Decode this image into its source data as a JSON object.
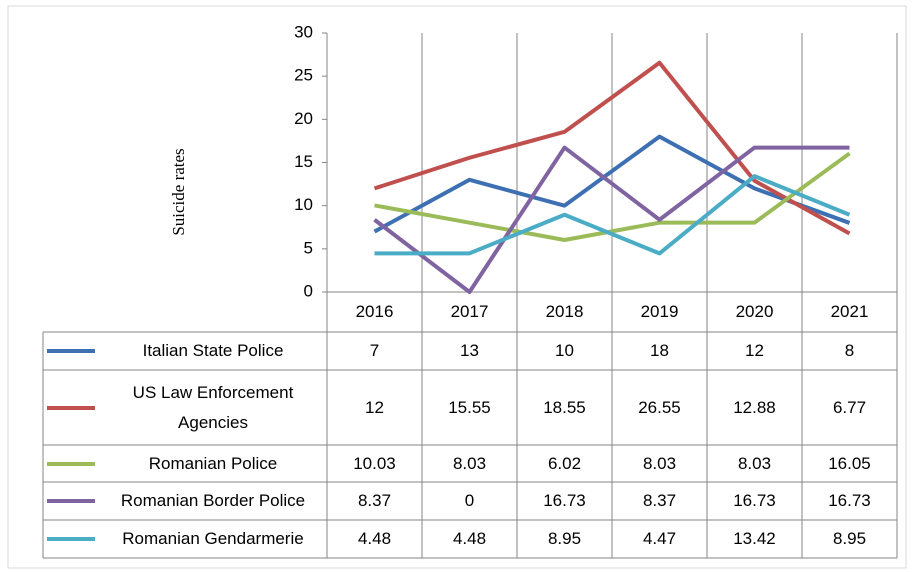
{
  "chart_data": {
    "type": "line",
    "y_label": "Suicide rates",
    "categories": [
      "2016",
      "2017",
      "2018",
      "2019",
      "2020",
      "2021"
    ],
    "ylim": [
      0,
      30
    ],
    "yticks": [
      0,
      5,
      10,
      15,
      20,
      25,
      30
    ],
    "series": [
      {
        "name": "Italian State Police",
        "color": "#3d70b2",
        "values": [
          7,
          13,
          10,
          18,
          12,
          8
        ]
      },
      {
        "name": "US Law Enforcement Agencies",
        "color": "#c0504d",
        "values": [
          12,
          15.55,
          18.55,
          26.55,
          12.88,
          6.77
        ]
      },
      {
        "name": "Romanian Police",
        "color": "#9bbb59",
        "values": [
          10.03,
          8.03,
          6.02,
          8.03,
          8.03,
          16.05
        ]
      },
      {
        "name": "Romanian Border Police",
        "color": "#8064a2",
        "values": [
          8.37,
          0,
          16.73,
          8.37,
          16.73,
          16.73
        ]
      },
      {
        "name": "Romanian Gendarmerie",
        "color": "#4bacc6",
        "values": [
          4.48,
          4.48,
          8.95,
          4.47,
          13.42,
          8.95
        ]
      }
    ]
  }
}
